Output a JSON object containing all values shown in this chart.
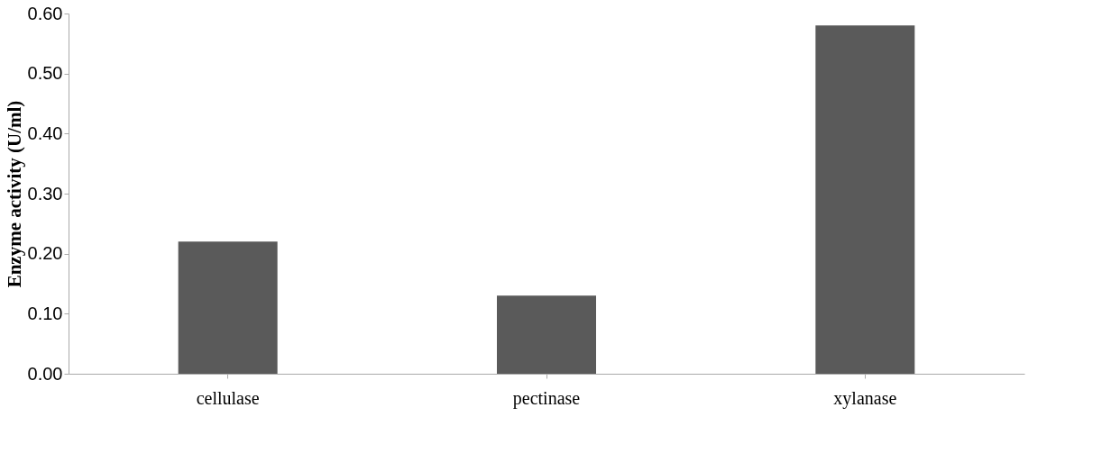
{
  "chart_data": {
    "type": "bar",
    "ylabel": "Enzyme activity (U/ml)",
    "categories": [
      "cellulase",
      "pectinase",
      "xylanase"
    ],
    "values": [
      0.22,
      0.13,
      0.58
    ],
    "color": "#5a5a5a",
    "ylim": [
      0,
      0.6
    ],
    "yticks": [
      {
        "value": 0,
        "label": "0.00"
      },
      {
        "value": 0.1,
        "label": "0.10"
      },
      {
        "value": 0.2,
        "label": "0.20"
      },
      {
        "value": 0.3,
        "label": "0.30"
      },
      {
        "value": 0.4,
        "label": "0.40"
      },
      {
        "value": 0.5,
        "label": "0.50"
      },
      {
        "value": 0.6,
        "label": "0.60"
      }
    ],
    "grid": false
  }
}
